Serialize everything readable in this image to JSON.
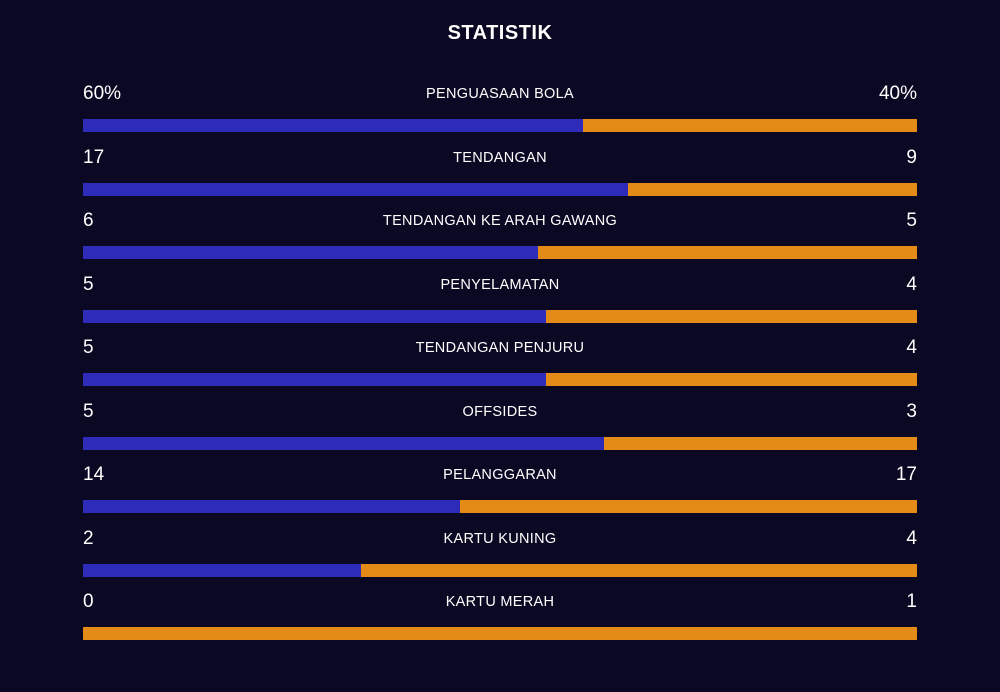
{
  "title": "STATISTIK",
  "colors": {
    "background": "#0a0822",
    "home": "#2e2bb8",
    "away": "#e38a17"
  },
  "stats": [
    {
      "label": "PENGUASAAN BOLA",
      "home": "60%",
      "away": "40%",
      "home_share": 0.6
    },
    {
      "label": "TENDANGAN",
      "home": "17",
      "away": "9",
      "home_share": 0.6538
    },
    {
      "label": "TENDANGAN KE ARAH GAWANG",
      "home": "6",
      "away": "5",
      "home_share": 0.5455
    },
    {
      "label": "PENYELAMATAN",
      "home": "5",
      "away": "4",
      "home_share": 0.5556
    },
    {
      "label": "TENDANGAN PENJURU",
      "home": "5",
      "away": "4",
      "home_share": 0.5556
    },
    {
      "label": "OFFSIDES",
      "home": "5",
      "away": "3",
      "home_share": 0.625
    },
    {
      "label": "PELANGGARAN",
      "home": "14",
      "away": "17",
      "home_share": 0.4516
    },
    {
      "label": "KARTU KUNING",
      "home": "2",
      "away": "4",
      "home_share": 0.3333
    },
    {
      "label": "KARTU MERAH",
      "home": "0",
      "away": "1",
      "home_share": 0
    }
  ]
}
